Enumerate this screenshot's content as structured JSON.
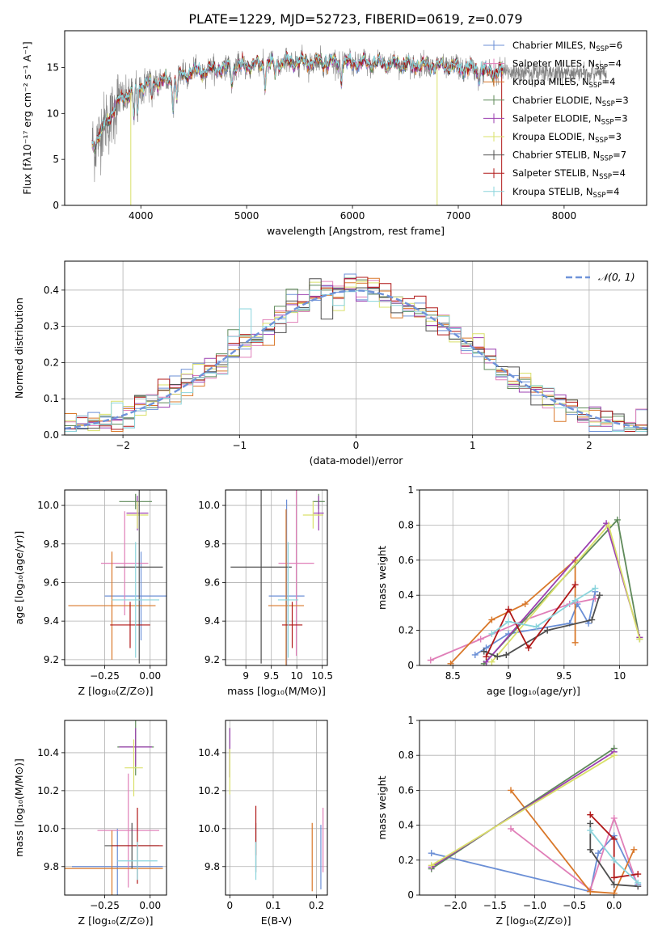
{
  "title": "PLATE=1229, MJD=52723, FIBERID=0619, z=0.079",
  "colors": {
    "Chabrier MILES": "#6b8fd6",
    "Salpeter MILES": "#e07fb8",
    "Kroupa MILES": "#d9782a",
    "Chabrier ELODIE": "#5f8a5a",
    "Salpeter ELODIE": "#9b3fb0",
    "Kroupa ELODIE": "#d9e06a",
    "Chabrier STELIB": "#4f4f4f",
    "Salpeter STELIB": "#b01818",
    "Kroupa STELIB": "#8ad4dc",
    "normal": "#6f93d9",
    "grid": "#b0b0b0"
  },
  "chart_data": [
    {
      "id": "spectrum",
      "type": "line",
      "xlabel": "wavelength [Angstrom, rest frame]",
      "ylabel": "Flux [fλ10⁻¹⁷ erg cm⁻² s⁻¹ A⁻¹]",
      "xlim": [
        3280,
        8780
      ],
      "ylim": [
        0,
        19
      ],
      "xticks": [
        4000,
        5000,
        6000,
        7000,
        8000
      ],
      "yticks": [
        0,
        5,
        10,
        15
      ],
      "grid": false,
      "legend": "right",
      "legend_entries": [
        {
          "label": "Chabrier MILES, N",
          "sub": "SSP",
          "suffix": "=6"
        },
        {
          "label": "Salpeter MILES, N",
          "sub": "SSP",
          "suffix": "=4"
        },
        {
          "label": "Kroupa MILES, N",
          "sub": "SSP",
          "suffix": "=4"
        },
        {
          "label": "Chabrier ELODIE, N",
          "sub": "SSP",
          "suffix": "=3"
        },
        {
          "label": "Salpeter ELODIE, N",
          "sub": "SSP",
          "suffix": "=3"
        },
        {
          "label": "Kroupa ELODIE, N",
          "sub": "SSP",
          "suffix": "=3"
        },
        {
          "label": "Chabrier STELIB, N",
          "sub": "SSP",
          "suffix": "=7"
        },
        {
          "label": "Salpeter STELIB, N",
          "sub": "SSP",
          "suffix": "=4"
        },
        {
          "label": "Kroupa STELIB, N",
          "sub": "SSP",
          "suffix": "=4"
        }
      ],
      "continuum": [
        [
          3550,
          6.5
        ],
        [
          3600,
          7.5
        ],
        [
          3650,
          8.5
        ],
        [
          3700,
          9.5
        ],
        [
          3750,
          10.5
        ],
        [
          3800,
          11.5
        ],
        [
          3850,
          11.8
        ],
        [
          3900,
          12.2
        ],
        [
          3950,
          12.5
        ],
        [
          4000,
          13
        ],
        [
          4100,
          13.4
        ],
        [
          4200,
          13.6
        ],
        [
          4300,
          13.5
        ],
        [
          4400,
          14.2
        ],
        [
          4500,
          14.5
        ],
        [
          4700,
          14.8
        ],
        [
          5000,
          15.2
        ],
        [
          5500,
          15.6
        ],
        [
          6000,
          15.5
        ],
        [
          6500,
          15.4
        ],
        [
          7000,
          15
        ],
        [
          7300,
          14.5
        ],
        [
          7400,
          14.5
        ]
      ],
      "model_range": [
        3540,
        7420
      ],
      "data_range": [
        3540,
        8400
      ]
    },
    {
      "id": "residuals",
      "type": "histogram",
      "xlabel": "(data-model)/error",
      "ylabel": "Normed distribution",
      "xlim": [
        -2.5,
        2.5
      ],
      "ylim": [
        0,
        0.48
      ],
      "xticks": [
        -2,
        -1,
        0,
        1,
        2
      ],
      "yticks": [
        0.0,
        0.1,
        0.2,
        0.3,
        0.4
      ],
      "grid": true,
      "bin_width": 0.1,
      "legend": "top-right",
      "legend_label": "𝒩(0, 1)"
    },
    {
      "id": "age-vs-Z",
      "type": "errorbar",
      "xlabel": "Z [log₁₀(Z/Z⊙)]",
      "ylabel": "age  [log₁₀(age/yr)]",
      "xlim": [
        -0.47,
        0.09
      ],
      "ylim": [
        9.17,
        10.08
      ],
      "xticks": [
        -0.25,
        0.0
      ],
      "xticklabels": [
        "−0.25",
        "0.00"
      ],
      "yticks": [
        9.2,
        9.4,
        9.6,
        9.8,
        10.0
      ],
      "grid": true,
      "points": [
        {
          "model": "Chabrier MILES",
          "x": -0.05,
          "xerr": 0.2,
          "y": 9.53,
          "yerr": 0.23
        },
        {
          "model": "Salpeter MILES",
          "x": -0.14,
          "xerr": 0.13,
          "y": 9.7,
          "yerr": 0.27
        },
        {
          "model": "Kroupa MILES",
          "x": -0.21,
          "xerr": 0.24,
          "y": 9.48,
          "yerr": 0.28
        },
        {
          "model": "Chabrier ELODIE",
          "x": -0.08,
          "xerr": 0.09,
          "y": 10.02,
          "yerr": 0.04
        },
        {
          "model": "Salpeter ELODIE",
          "x": -0.07,
          "xerr": 0.06,
          "y": 9.96,
          "yerr": 0.09
        },
        {
          "model": "Kroupa ELODIE",
          "x": -0.07,
          "xerr": 0.06,
          "y": 9.95,
          "yerr": 0.07
        },
        {
          "model": "Chabrier STELIB",
          "x": -0.06,
          "xerr": 0.13,
          "y": 9.68,
          "yerr": 0.5
        },
        {
          "model": "Salpeter STELIB",
          "x": -0.11,
          "xerr": 0.11,
          "y": 9.38,
          "yerr": 0.12
        },
        {
          "model": "Kroupa STELIB",
          "x": -0.08,
          "xerr": 0.13,
          "y": 9.51,
          "yerr": 0.3
        }
      ]
    },
    {
      "id": "age-vs-mass",
      "type": "errorbar",
      "xlabel": "mass [log₁₀(M/M⊙)]",
      "ylabel": "",
      "xlim": [
        8.6,
        10.6
      ],
      "ylim": [
        9.17,
        10.08
      ],
      "xticks": [
        9.0,
        9.5,
        10.0,
        10.5
      ],
      "yticks": [
        9.2,
        9.4,
        9.6,
        9.8,
        10.0
      ],
      "grid": true,
      "points": [
        {
          "model": "Chabrier MILES",
          "x": 9.8,
          "xerr": 0.35,
          "y": 9.53,
          "yerr": 0.5
        },
        {
          "model": "Salpeter MILES",
          "x": 9.99,
          "xerr": 0.35,
          "y": 9.7,
          "yerr": 0.48
        },
        {
          "model": "Kroupa MILES",
          "x": 9.79,
          "xerr": 0.35,
          "y": 9.48,
          "yerr": 0.5
        },
        {
          "model": "Chabrier ELODIE",
          "x": 10.43,
          "xerr": 0.12,
          "y": 10.02,
          "yerr": 0.04
        },
        {
          "model": "Salpeter ELODIE",
          "x": 10.43,
          "xerr": 0.1,
          "y": 9.96,
          "yerr": 0.09
        },
        {
          "model": "Kroupa ELODIE",
          "x": 10.32,
          "xerr": 0.2,
          "y": 9.95,
          "yerr": 0.07
        },
        {
          "model": "Chabrier STELIB",
          "x": 9.3,
          "xerr": 0.6,
          "y": 9.68,
          "yerr": 0.5
        },
        {
          "model": "Salpeter STELIB",
          "x": 9.91,
          "xerr": 0.2,
          "y": 9.38,
          "yerr": 0.12
        },
        {
          "model": "Kroupa STELIB",
          "x": 9.83,
          "xerr": 0.2,
          "y": 9.51,
          "yerr": 0.3
        }
      ]
    },
    {
      "id": "weight-vs-age",
      "type": "line",
      "xlabel": "age  [log₁₀(age/yr)]",
      "ylabel": "mass weight",
      "xlim": [
        8.2,
        10.25
      ],
      "ylim": [
        0,
        1.0
      ],
      "xticks": [
        8.5,
        9.0,
        9.5,
        10.0
      ],
      "yticks": [
        0.0,
        0.2,
        0.4,
        0.6,
        0.8,
        1.0
      ],
      "grid": true,
      "series": [
        {
          "model": "Chabrier MILES",
          "x": [
            8.7,
            8.8,
            9.0,
            9.55,
            9.62,
            9.72,
            9.78
          ],
          "y": [
            0.06,
            0.1,
            0.18,
            0.24,
            0.35,
            0.24,
            0.42
          ]
        },
        {
          "model": "Salpeter MILES",
          "x": [
            8.3,
            8.75,
            9.15,
            9.55,
            9.78
          ],
          "y": [
            0.03,
            0.15,
            0.26,
            0.35,
            0.38
          ]
        },
        {
          "model": "Kroupa MILES",
          "x": [
            8.48,
            8.85,
            9.15,
            9.6
          ],
          "y": [
            0.01,
            0.26,
            0.35,
            0.6
          ]
        },
        {
          "model": "Kroupa MILES",
          "x": [
            9.6,
            9.6
          ],
          "y": [
            0.6,
            0.13
          ]
        },
        {
          "model": "Chabrier ELODIE",
          "x": [
            8.78,
            9.98,
            10.18
          ],
          "y": [
            0.01,
            0.83,
            0.15
          ]
        },
        {
          "model": "Salpeter ELODIE",
          "x": [
            8.8,
            9.88,
            10.18
          ],
          "y": [
            0.02,
            0.81,
            0.16
          ]
        },
        {
          "model": "Kroupa ELODIE",
          "x": [
            8.85,
            9.9,
            10.18
          ],
          "y": [
            0.02,
            0.8,
            0.15
          ]
        },
        {
          "model": "Chabrier STELIB",
          "x": [
            8.78,
            8.9,
            8.98,
            9.35,
            9.75,
            9.82
          ],
          "y": [
            0.08,
            0.05,
            0.06,
            0.2,
            0.26,
            0.4
          ]
        },
        {
          "model": "Salpeter STELIB",
          "x": [
            8.8,
            9.0,
            9.18,
            9.6
          ],
          "y": [
            0.05,
            0.32,
            0.1,
            0.46
          ]
        },
        {
          "model": "Kroupa STELIB",
          "x": [
            8.85,
            9.0,
            9.25,
            9.6,
            9.78
          ],
          "y": [
            0.18,
            0.25,
            0.22,
            0.37,
            0.44
          ]
        }
      ]
    },
    {
      "id": "mass-vs-Z",
      "type": "errorbar",
      "xlabel": "Z [log₁₀(Z/Z⊙)]",
      "ylabel": "mass [log₁₀(M/M⊙)]",
      "xlim": [
        -0.47,
        0.09
      ],
      "ylim": [
        9.65,
        10.57
      ],
      "xticks": [
        -0.25,
        0.0
      ],
      "xticklabels": [
        "−0.25",
        "0.00"
      ],
      "yticks": [
        9.8,
        10.0,
        10.2,
        10.4
      ],
      "grid": true,
      "points": [
        {
          "model": "Chabrier MILES",
          "x": -0.18,
          "xerr": 0.25,
          "y": 9.8,
          "yerr": 0.2
        },
        {
          "model": "Salpeter MILES",
          "x": -0.12,
          "xerr": 0.17,
          "y": 9.99,
          "yerr": 0.3
        },
        {
          "model": "Kroupa MILES",
          "x": -0.21,
          "xerr": 0.28,
          "y": 9.79,
          "yerr": 0.2
        },
        {
          "model": "Chabrier ELODIE",
          "x": -0.08,
          "xerr": 0.1,
          "y": 10.43,
          "yerr": 0.15
        },
        {
          "model": "Salpeter ELODIE",
          "x": -0.08,
          "xerr": 0.09,
          "y": 10.43,
          "yerr": 0.1
        },
        {
          "model": "Kroupa ELODIE",
          "x": -0.09,
          "xerr": 0.05,
          "y": 10.32,
          "yerr": 0.15
        },
        {
          "model": "Chabrier STELIB",
          "x": -0.1,
          "xerr": 0.15,
          "y": 9.91,
          "yerr": 0.12
        },
        {
          "model": "Salpeter STELIB",
          "x": -0.07,
          "xerr": 0.14,
          "y": 9.91,
          "yerr": 0.2
        },
        {
          "model": "Kroupa STELIB",
          "x": -0.07,
          "xerr": 0.11,
          "y": 9.83,
          "yerr": 0.1
        }
      ]
    },
    {
      "id": "mass-vs-ebv",
      "type": "errorbar",
      "xlabel": "E(B-V)",
      "ylabel": "",
      "xlim": [
        -0.01,
        0.225
      ],
      "ylim": [
        9.65,
        10.57
      ],
      "xticks": [
        0.0,
        0.1,
        0.2
      ],
      "yticks": [
        9.8,
        10.0,
        10.2,
        10.4
      ],
      "grid": true,
      "points": [
        {
          "model": "Chabrier MILES",
          "x": 0.21,
          "xerr": 0,
          "y": 9.85,
          "yerr": 0.17
        },
        {
          "model": "Salpeter MILES",
          "x": 0.215,
          "xerr": 0,
          "y": 9.94,
          "yerr": 0.17
        },
        {
          "model": "Kroupa MILES",
          "x": 0.19,
          "xerr": 0,
          "y": 9.85,
          "yerr": 0.18
        },
        {
          "model": "Chabrier ELODIE",
          "x": 0.0,
          "xerr": 0,
          "y": 10.4,
          "yerr": 0.13
        },
        {
          "model": "Salpeter ELODIE",
          "x": 0.0,
          "xerr": 0,
          "y": 10.4,
          "yerr": 0.13
        },
        {
          "model": "Kroupa ELODIE",
          "x": 0.0,
          "xerr": 0,
          "y": 10.3,
          "yerr": 0.12
        },
        {
          "model": "Chabrier STELIB",
          "x": 0.06,
          "xerr": 0,
          "y": 9.9,
          "yerr": 0.13
        },
        {
          "model": "Salpeter STELIB",
          "x": 0.06,
          "xerr": 0,
          "y": 9.99,
          "yerr": 0.13
        },
        {
          "model": "Kroupa STELIB",
          "x": 0.06,
          "xerr": 0,
          "y": 9.83,
          "yerr": 0.1
        }
      ]
    },
    {
      "id": "weight-vs-Z",
      "type": "line",
      "xlabel": "Z [log₁₀(Z/Z⊙)]",
      "ylabel": "mass weight",
      "xlim": [
        -2.45,
        0.42
      ],
      "ylim": [
        0,
        1.0
      ],
      "xticks": [
        -2.0,
        -1.5,
        -1.0,
        -0.5,
        0.0
      ],
      "xticklabels": [
        "−2.0",
        "−1.5",
        "−1.0",
        "−0.5",
        "0.0"
      ],
      "yticks": [
        0.0,
        0.2,
        0.4,
        0.6,
        0.8,
        1.0
      ],
      "grid": true,
      "series": [
        {
          "model": "Chabrier MILES",
          "x": [
            -2.3,
            -0.3,
            -0.2,
            0.0,
            0.3
          ],
          "y": [
            0.24,
            0.02,
            0.24,
            0.34,
            0.06
          ]
        },
        {
          "model": "Salpeter MILES",
          "x": [
            -1.3,
            -0.3,
            0.0,
            0.3
          ],
          "y": [
            0.38,
            0.03,
            0.44,
            0.05
          ]
        },
        {
          "model": "Kroupa MILES",
          "x": [
            -1.3,
            -0.3,
            0.0,
            0.25
          ],
          "y": [
            0.6,
            0.02,
            0.01,
            0.26
          ]
        },
        {
          "model": "Chabrier ELODIE",
          "x": [
            -2.3,
            0.0
          ],
          "y": [
            0.15,
            0.84
          ]
        },
        {
          "model": "Salpeter ELODIE",
          "x": [
            -2.3,
            0.0
          ],
          "y": [
            0.16,
            0.82
          ]
        },
        {
          "model": "Kroupa ELODIE",
          "x": [
            -2.3,
            0.0
          ],
          "y": [
            0.17,
            0.8
          ]
        },
        {
          "model": "Chabrier STELIB",
          "x": [
            -0.3,
            -0.3,
            0.0,
            0.3
          ],
          "y": [
            0.41,
            0.26,
            0.06,
            0.05
          ]
        },
        {
          "model": "Salpeter STELIB",
          "x": [
            -0.3,
            0.0,
            0.0,
            0.3
          ],
          "y": [
            0.46,
            0.32,
            0.1,
            0.12
          ]
        },
        {
          "model": "Kroupa STELIB",
          "x": [
            -0.3,
            0.0,
            0.3
          ],
          "y": [
            0.37,
            0.2,
            0.07
          ]
        }
      ]
    }
  ]
}
